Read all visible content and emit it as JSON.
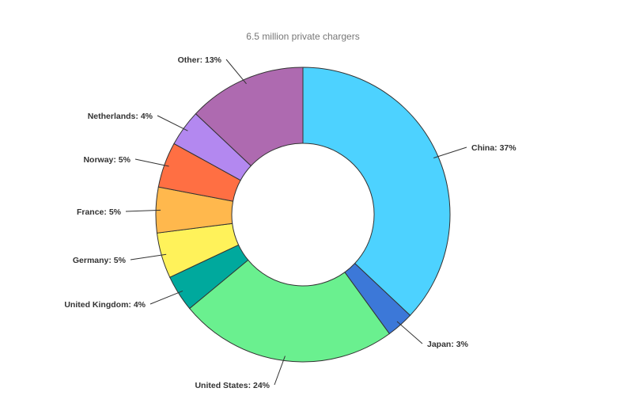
{
  "chart_data": {
    "type": "pie",
    "variant": "donut",
    "title": "6.5 million private chargers",
    "slices": [
      {
        "label": "China: 37%",
        "category": "China",
        "value": 37,
        "color": "#4dd2ff"
      },
      {
        "label": "Japan: 3%",
        "category": "Japan",
        "value": 3,
        "color": "#3c78d8"
      },
      {
        "label": "United States: 24%",
        "category": "United States",
        "value": 24,
        "color": "#6af08f"
      },
      {
        "label": "United Kingdom: 4%",
        "category": "United Kingdom",
        "value": 4,
        "color": "#00a99d"
      },
      {
        "label": "Germany: 5%",
        "category": "Germany",
        "value": 5,
        "color": "#fff25a"
      },
      {
        "label": "France: 5%",
        "category": "France",
        "value": 5,
        "color": "#ffb84d"
      },
      {
        "label": "Norway: 5%",
        "category": "Norway",
        "value": 5,
        "color": "#ff6f43"
      },
      {
        "label": "Netherlands: 4%",
        "category": "Netherlands",
        "value": 4,
        "color": "#b388f0"
      },
      {
        "label": "Other: 13%",
        "category": "Other",
        "value": 13,
        "color": "#ae6ab0"
      }
    ],
    "legend": "none"
  }
}
